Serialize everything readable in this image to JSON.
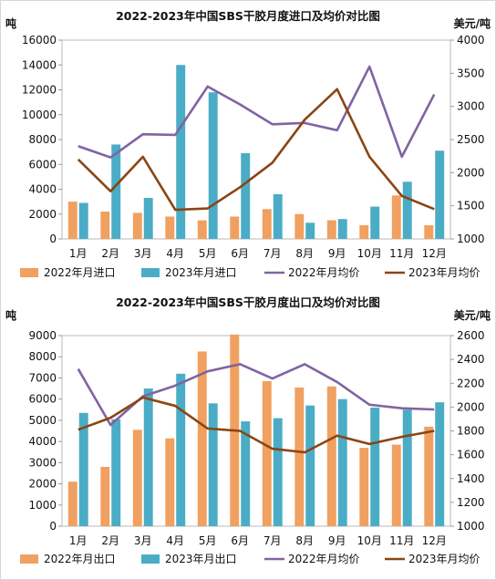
{
  "chart_data": [
    {
      "type": "bar",
      "title": "2022-2023年中国SBS干胶月度进口及均价对比图",
      "ylabel": "吨",
      "y2label": "美元/吨",
      "categories": [
        "1月",
        "2月",
        "3月",
        "4月",
        "5月",
        "6月",
        "7月",
        "8月",
        "9月",
        "10月",
        "11月",
        "12月"
      ],
      "ylim": [
        0,
        16000
      ],
      "yticks": [
        "0",
        "2000",
        "4000",
        "6000",
        "8000",
        "10000",
        "12000",
        "14000",
        "16000"
      ],
      "y2lim": [
        1000,
        4000
      ],
      "y2ticks": [
        "1000",
        "1500",
        "2000",
        "2500",
        "3000",
        "3500",
        "4000"
      ],
      "legend_position": "bottom",
      "series": [
        {
          "name": "2022年月进口",
          "kind": "bar",
          "axis": "left",
          "color": "#F0A060",
          "values": [
            3000,
            2200,
            2100,
            1800,
            1500,
            1800,
            2400,
            2000,
            1500,
            1100,
            3500,
            1100
          ]
        },
        {
          "name": "2023年月进口",
          "kind": "bar",
          "axis": "left",
          "color": "#4BACC6",
          "values": [
            2900,
            7600,
            3300,
            14000,
            11800,
            6900,
            3600,
            1300,
            1600,
            2600,
            4600,
            7100
          ]
        },
        {
          "name": "2022年月均价",
          "kind": "line",
          "axis": "right",
          "color": "#8064A2",
          "values": [
            2400,
            2230,
            2580,
            2570,
            3300,
            3030,
            2730,
            2750,
            2640,
            3600,
            2240,
            3180
          ]
        },
        {
          "name": "2023年月均价",
          "kind": "line",
          "axis": "right",
          "color": "#8B4513",
          "values": [
            2200,
            1720,
            2240,
            1440,
            1460,
            1780,
            2150,
            2800,
            3260,
            2240,
            1650,
            1450
          ]
        }
      ]
    },
    {
      "type": "bar",
      "title": "2022-2023年中国SBS干胶月度出口及均价对比图",
      "ylabel": "吨",
      "y2label": "美元/吨",
      "categories": [
        "1月",
        "2月",
        "3月",
        "4月",
        "5月",
        "6月",
        "7月",
        "8月",
        "9月",
        "10月",
        "11月",
        "12月"
      ],
      "ylim": [
        0,
        9000
      ],
      "yticks": [
        "0",
        "1000",
        "2000",
        "3000",
        "4000",
        "5000",
        "6000",
        "7000",
        "8000",
        "9000"
      ],
      "y2lim": [
        1000,
        2600
      ],
      "y2ticks": [
        "1000",
        "1200",
        "1400",
        "1600",
        "1800",
        "2000",
        "2200",
        "2400",
        "2600"
      ],
      "legend_position": "bottom",
      "series": [
        {
          "name": "2022年月出口",
          "kind": "bar",
          "axis": "left",
          "color": "#F0A060",
          "values": [
            2100,
            2800,
            4550,
            4150,
            8250,
            9050,
            6850,
            6550,
            6600,
            3700,
            3850,
            4700
          ]
        },
        {
          "name": "2023年月出口",
          "kind": "bar",
          "axis": "left",
          "color": "#4BACC6",
          "values": [
            5350,
            5050,
            6500,
            7200,
            5800,
            4950,
            5100,
            5700,
            6000,
            5600,
            5500,
            5850
          ]
        },
        {
          "name": "2022年月均价",
          "kind": "line",
          "axis": "right",
          "color": "#8064A2",
          "values": [
            2320,
            1850,
            2090,
            2180,
            2300,
            2360,
            2240,
            2360,
            2210,
            2020,
            1990,
            1980
          ]
        },
        {
          "name": "2023年月均价",
          "kind": "line",
          "axis": "right",
          "color": "#8B4513",
          "values": [
            1810,
            1910,
            2080,
            2010,
            1820,
            1800,
            1650,
            1620,
            1760,
            1690,
            1750,
            1800
          ]
        }
      ]
    }
  ]
}
